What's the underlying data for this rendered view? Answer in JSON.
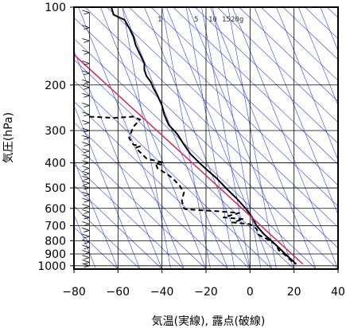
{
  "chart_data": {
    "type": "line",
    "subtype": "emagram",
    "xlabel": "気温(実線), 露点(破線)",
    "ylabel": "気圧(hPa)",
    "xlim": [
      -80,
      40
    ],
    "ylim": [
      1030,
      100
    ],
    "y_scale": "log",
    "x_ticks": [
      -80,
      -60,
      -40,
      -20,
      0,
      20,
      40
    ],
    "x_tick_labels": [
      "−80",
      "−60",
      "−40",
      "−20",
      "0",
      "20",
      "40"
    ],
    "y_ticks": [
      100,
      200,
      300,
      400,
      500,
      600,
      700,
      800,
      900,
      1000
    ],
    "y_tick_labels": [
      "100",
      "200",
      "300",
      "400",
      "500",
      "600",
      "700",
      "800",
      "900",
      "1000"
    ],
    "grid": true,
    "mixing_ratio_labels": [
      "1",
      "5",
      "10",
      "15",
      "20g"
    ],
    "colors": {
      "temperature": "#000000",
      "dewpoint": "#000000",
      "parcel": "#cc3366",
      "background_lines": "#3344cc",
      "grid": "#000000"
    },
    "series": [
      {
        "style": "solid",
        "points": [
          [
            -63,
            100
          ],
          [
            -62,
            107
          ],
          [
            -57,
            112
          ],
          [
            -55,
            120
          ],
          [
            -53,
            130
          ],
          [
            -52,
            140
          ],
          [
            -50,
            152
          ],
          [
            -48,
            165
          ],
          [
            -48,
            175
          ],
          [
            -47,
            185
          ],
          [
            -45,
            195
          ],
          [
            -44,
            205
          ],
          [
            -42,
            220
          ],
          [
            -40,
            240
          ],
          [
            -39,
            260
          ],
          [
            -37,
            285
          ],
          [
            -33,
            310
          ],
          [
            -30,
            340
          ],
          [
            -27,
            370
          ],
          [
            -23,
            400
          ],
          [
            -19,
            430
          ],
          [
            -15,
            460
          ],
          [
            -11,
            500
          ],
          [
            -6,
            550
          ],
          [
            -2,
            600
          ],
          [
            1,
            650
          ],
          [
            3,
            700
          ],
          [
            6,
            750
          ],
          [
            9,
            790
          ],
          [
            13,
            850
          ],
          [
            16,
            900
          ],
          [
            19,
            950
          ],
          [
            21,
            985
          ]
        ]
      },
      {
        "style": "dashed",
        "points": [
          [
            -73,
            265
          ],
          [
            -62,
            268
          ],
          [
            -53,
            265
          ],
          [
            -50,
            272
          ],
          [
            -53,
            290
          ],
          [
            -55,
            320
          ],
          [
            -53,
            340
          ],
          [
            -50,
            345
          ],
          [
            -52,
            350
          ],
          [
            -47,
            385
          ],
          [
            -40,
            398
          ],
          [
            -40,
            408
          ],
          [
            -43,
            400
          ],
          [
            -42,
            420
          ],
          [
            -38,
            440
          ],
          [
            -35,
            460
          ],
          [
            -32,
            490
          ],
          [
            -30,
            520
          ],
          [
            -31,
            560
          ],
          [
            -30,
            600
          ],
          [
            -29,
            605
          ],
          [
            -15,
            615
          ],
          [
            -5,
            625
          ],
          [
            -12,
            650
          ],
          [
            -3,
            660
          ],
          [
            -8,
            680
          ],
          [
            0,
            690
          ],
          [
            3,
            720
          ],
          [
            4,
            760
          ],
          [
            8,
            790
          ],
          [
            12,
            830
          ],
          [
            13,
            870
          ],
          [
            16,
            910
          ],
          [
            19,
            960
          ],
          [
            21,
            985
          ]
        ]
      },
      {
        "style": "solid",
        "points": [
          [
            -81,
            150
          ],
          [
            24,
            985
          ]
        ]
      }
    ],
    "wind_barbs": {
      "x": -73,
      "pressures": [
        105,
        120,
        135,
        150,
        165,
        180,
        195,
        205,
        220,
        240,
        260,
        280,
        300,
        320,
        340,
        360,
        380,
        400,
        420,
        440,
        460,
        480,
        500,
        530,
        560,
        590,
        620,
        650,
        690,
        730,
        770,
        810,
        850,
        890,
        930,
        970,
        1000
      ]
    }
  }
}
